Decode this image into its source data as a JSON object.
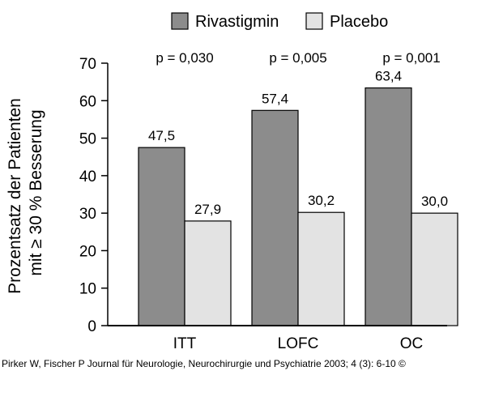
{
  "chart_data": {
    "type": "bar",
    "categories": [
      "ITT",
      "LOFC",
      "OC"
    ],
    "series": [
      {
        "name": "Rivastigmin",
        "values": [
          47.5,
          57.4,
          63.4
        ],
        "labels": [
          "47,5",
          "57,4",
          "63,4"
        ],
        "color": "#8c8c8c"
      },
      {
        "name": "Placebo",
        "values": [
          27.9,
          30.2,
          30.0
        ],
        "labels": [
          "27,9",
          "30,2",
          "30,0"
        ],
        "color": "#e3e3e3"
      }
    ],
    "annotations": [
      "p = 0,030",
      "p = 0,005",
      "p = 0,001"
    ],
    "ylabel_line1": "Prozentsatz der Patienten",
    "ylabel_line2": "mit ≥ 30 % Besserung",
    "xlabel": "",
    "ylim": [
      0,
      70
    ],
    "yticks": [
      0,
      10,
      20,
      30,
      40,
      50,
      60,
      70
    ],
    "grid": false,
    "legend_position": "top"
  },
  "caption": "Pirker W, Fischer P Journal für Neurologie, Neurochirurgie und Psychiatrie 2003; 4 (3): 6-10 ©"
}
